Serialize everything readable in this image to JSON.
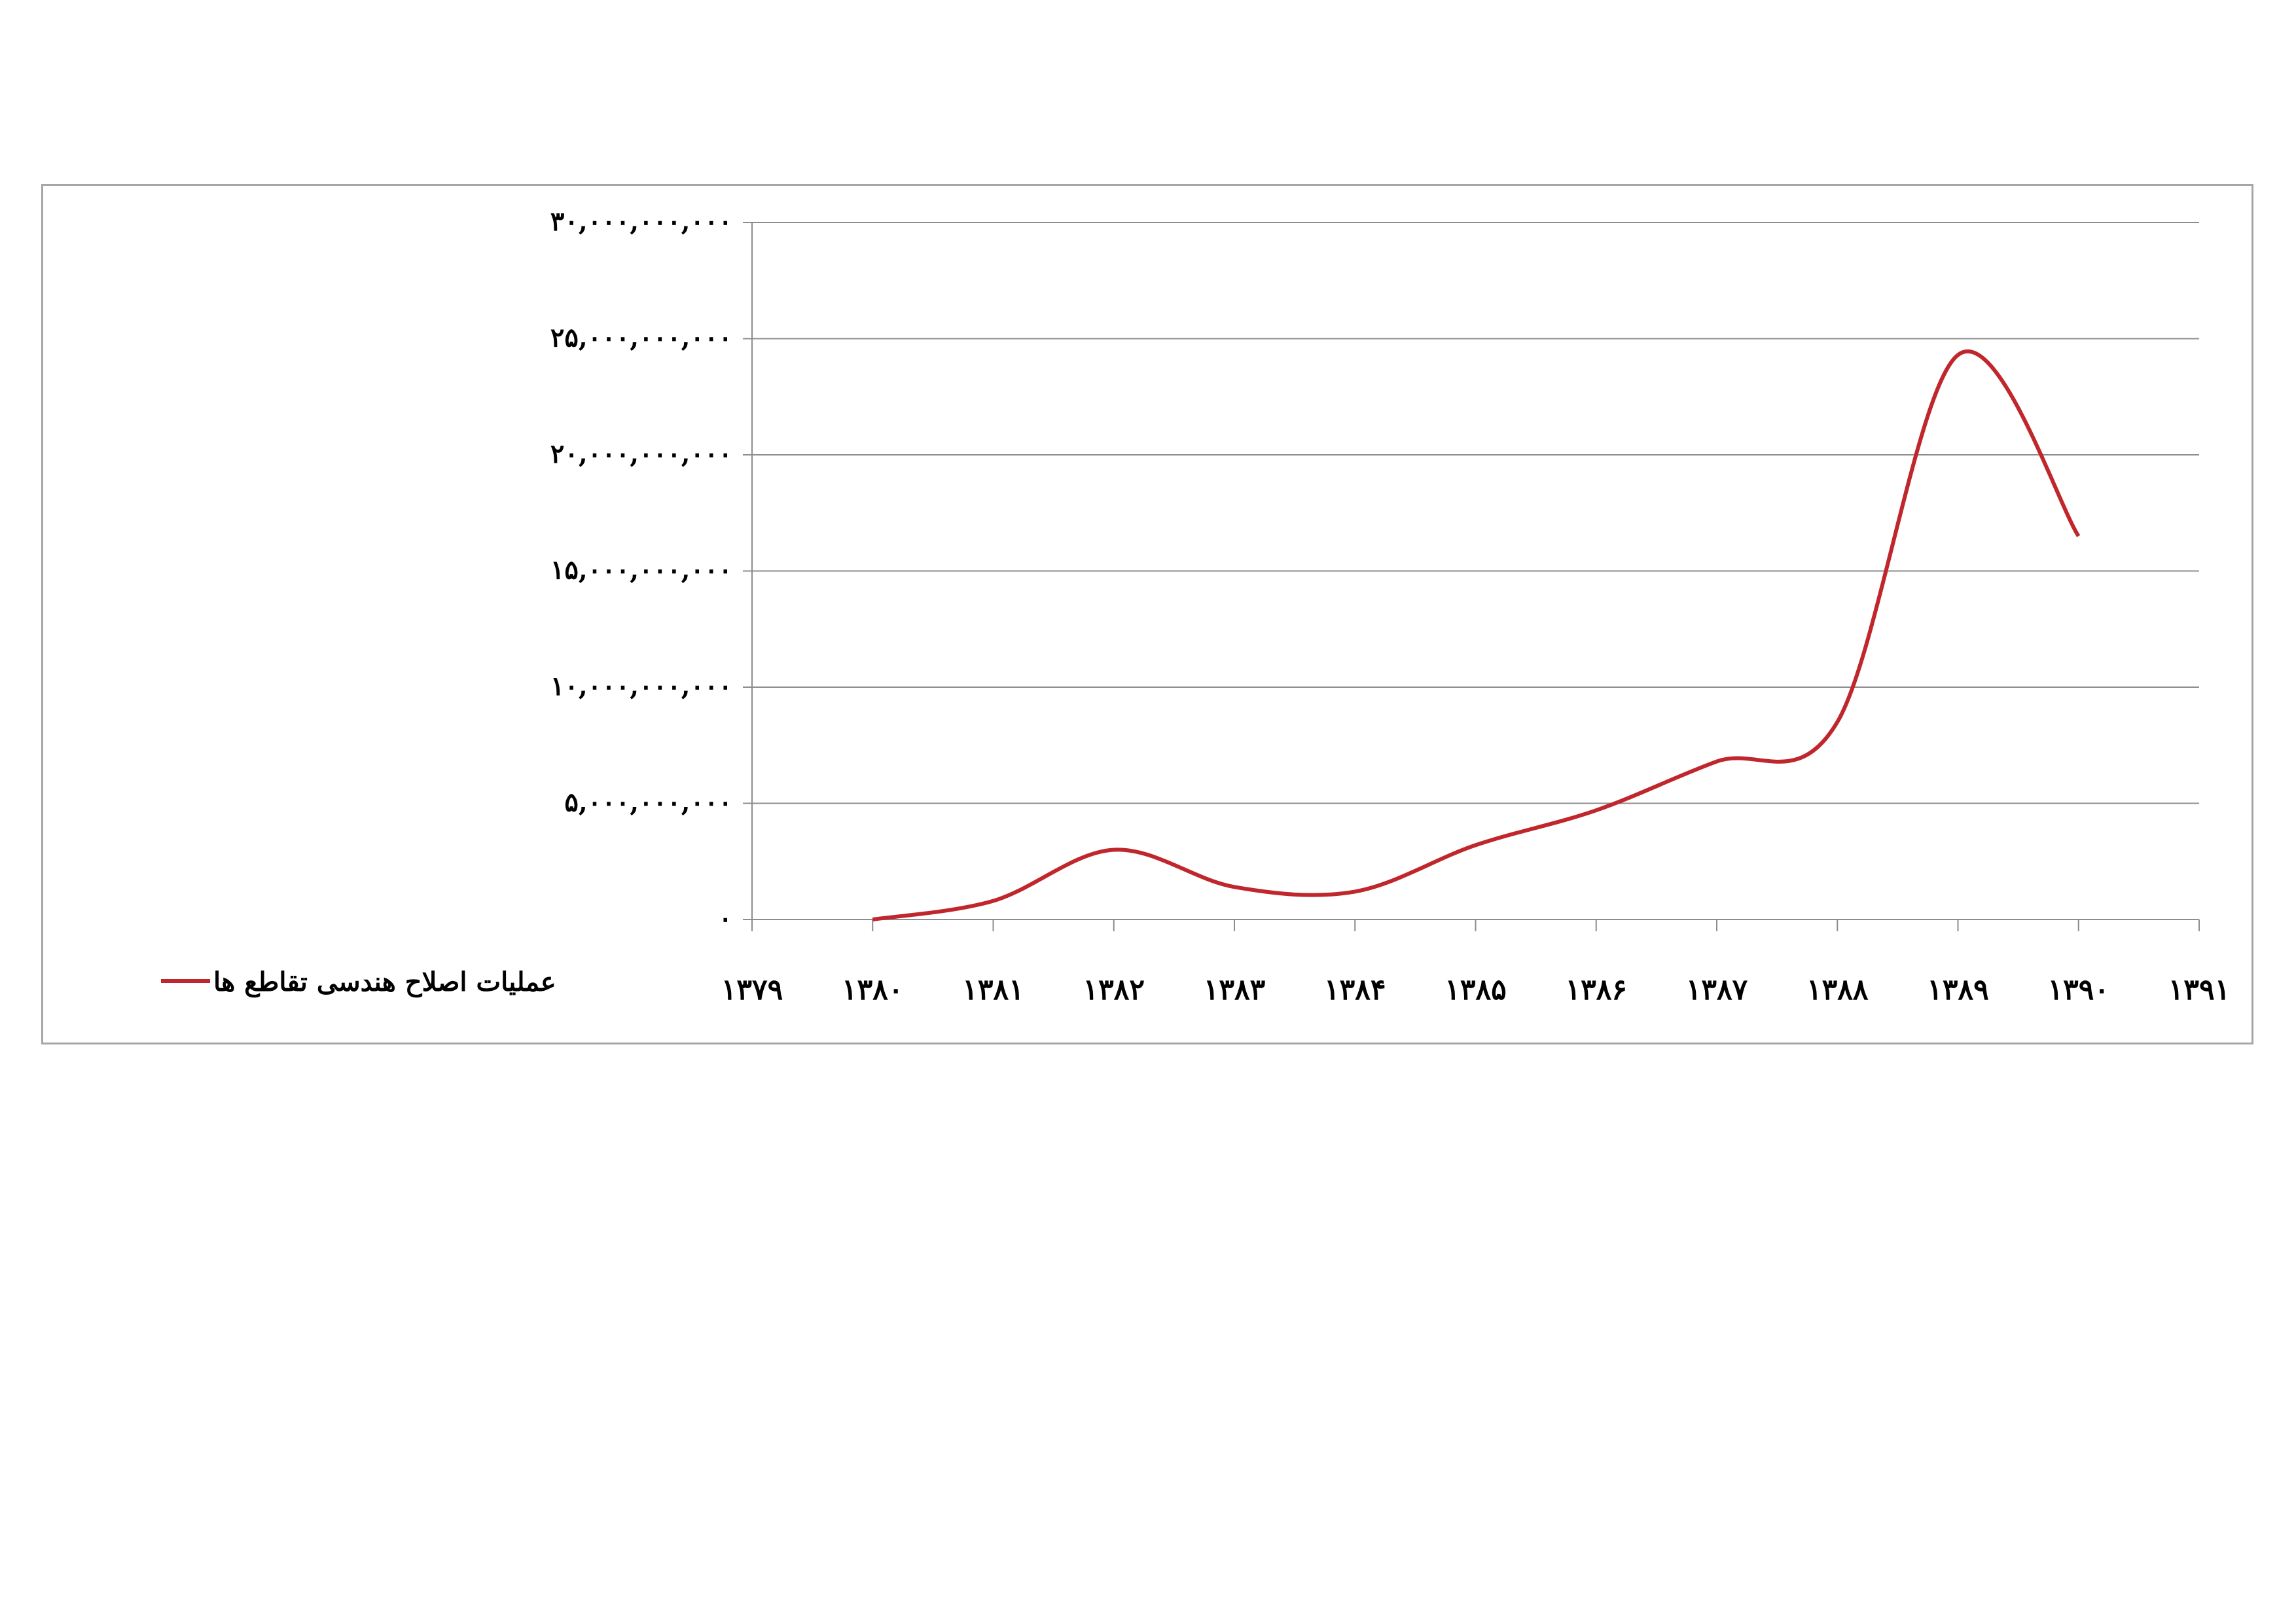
{
  "colors": {
    "series": "#c0272d",
    "grid": "#8c8c8c",
    "axis": "#8c8c8c",
    "frame": "#a6a6a6"
  },
  "chart_data": {
    "type": "line",
    "x_tick_labels": [
      "۱۳۷۹",
      "۱۳۸۰",
      "۱۳۸۱",
      "۱۳۸۲",
      "۱۳۸۳",
      "۱۳۸۴",
      "۱۳۸۵",
      "۱۳۸۶",
      "۱۳۸۷",
      "۱۳۸۸",
      "۱۳۸۹",
      "۱۳۹۰",
      "۱۳۹۱"
    ],
    "y_tick_values": [
      0,
      5000000000,
      10000000000,
      15000000000,
      20000000000,
      25000000000,
      30000000000
    ],
    "y_tick_labels": [
      "۰",
      "۵,۰۰۰,۰۰۰,۰۰۰",
      "۱۰,۰۰۰,۰۰۰,۰۰۰",
      "۱۵,۰۰۰,۰۰۰,۰۰۰",
      "۲۰,۰۰۰,۰۰۰,۰۰۰",
      "۲۵,۰۰۰,۰۰۰,۰۰۰",
      "۳۰,۰۰۰,۰۰۰,۰۰۰"
    ],
    "ylim": [
      0,
      30000000000
    ],
    "xlim": [
      1379,
      1391
    ],
    "grid": true,
    "legend_position": "left",
    "series": [
      {
        "name": "عملیات اصلاح هندسی تقاطع ها",
        "x": [
          1380,
          1381,
          1382,
          1383,
          1384,
          1385,
          1386,
          1387,
          1388,
          1389,
          1390
        ],
        "values": [
          0,
          800000000,
          3000000000,
          1400000000,
          1200000000,
          3200000000,
          4700000000,
          6800000000,
          8500000000,
          24300000000,
          16500000000
        ]
      }
    ]
  }
}
